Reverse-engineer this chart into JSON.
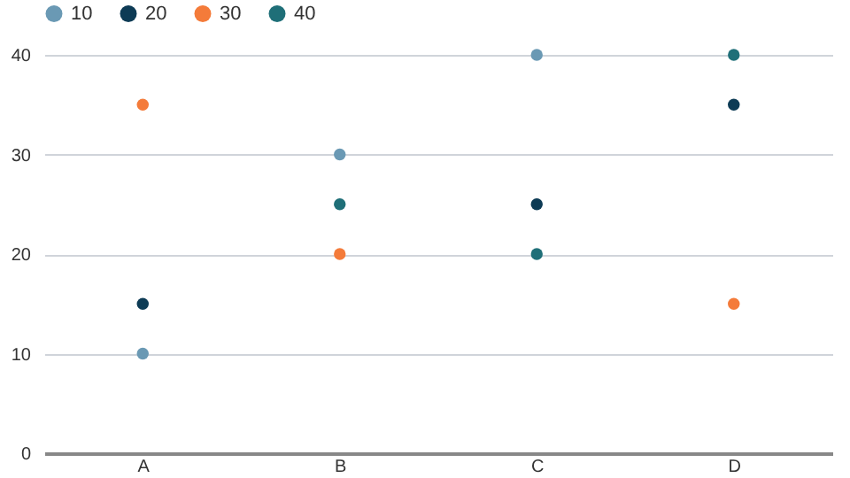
{
  "chart_data": {
    "type": "scatter",
    "categories": [
      "A",
      "B",
      "C",
      "D"
    ],
    "series": [
      {
        "name": "10",
        "color": "#6a99b4",
        "values": [
          10,
          30,
          40,
          null
        ]
      },
      {
        "name": "20",
        "color": "#0d3b55",
        "values": [
          15,
          null,
          25,
          35
        ]
      },
      {
        "name": "30",
        "color": "#f47b3a",
        "values": [
          35,
          20,
          null,
          15
        ]
      },
      {
        "name": "40",
        "color": "#1f6f78",
        "values": [
          null,
          25,
          20,
          40
        ]
      }
    ],
    "ylim": [
      0,
      40
    ],
    "yticks": [
      0,
      10,
      20,
      30,
      40
    ],
    "grid": "y",
    "legend": "top",
    "marker": "circle"
  }
}
